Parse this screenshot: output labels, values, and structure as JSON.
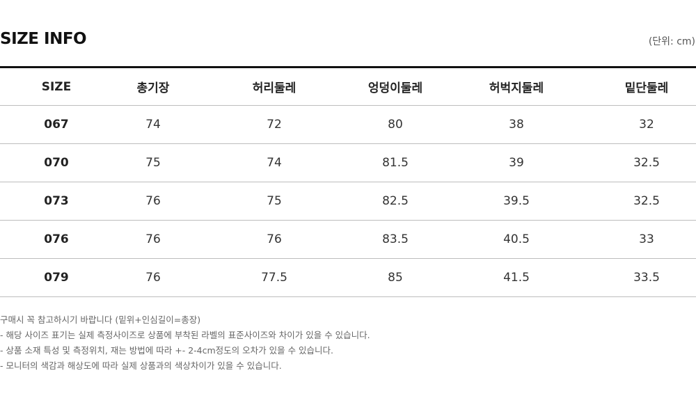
{
  "title": "SIZE INFO",
  "unit": "(단위: cm)",
  "table": {
    "headers": [
      "SIZE",
      "총기장",
      "허리둘레",
      "엉덩이둘레",
      "허벅지둘레",
      "밑단둘레"
    ],
    "rows": [
      [
        "067",
        "74",
        "72",
        "80",
        "38",
        "32"
      ],
      [
        "070",
        "75",
        "74",
        "81.5",
        "39",
        "32.5"
      ],
      [
        "073",
        "76",
        "75",
        "82.5",
        "39.5",
        "32.5"
      ],
      [
        "076",
        "76",
        "76",
        "83.5",
        "40.5",
        "33"
      ],
      [
        "079",
        "76",
        "77.5",
        "85",
        "41.5",
        "33.5"
      ]
    ]
  },
  "notes": [
    "구매시 꼭 참고하시기 바랍니다 (밑위+인심길이=총장)",
    "- 해당 사이즈 표기는 실제 측정사이즈로 상품에 부착된 라벨의 표준사이즈와 차이가 있을 수 있습니다.",
    "- 상품 소재 특성 및 측정위치, 재는 방법에 따라 +- 2-4cm정도의 오차가 있을 수 있습니다.",
    "- 모니터의 색감과 해상도에 따라 실제 상품과의 색상차이가 있을 수 있습니다."
  ]
}
